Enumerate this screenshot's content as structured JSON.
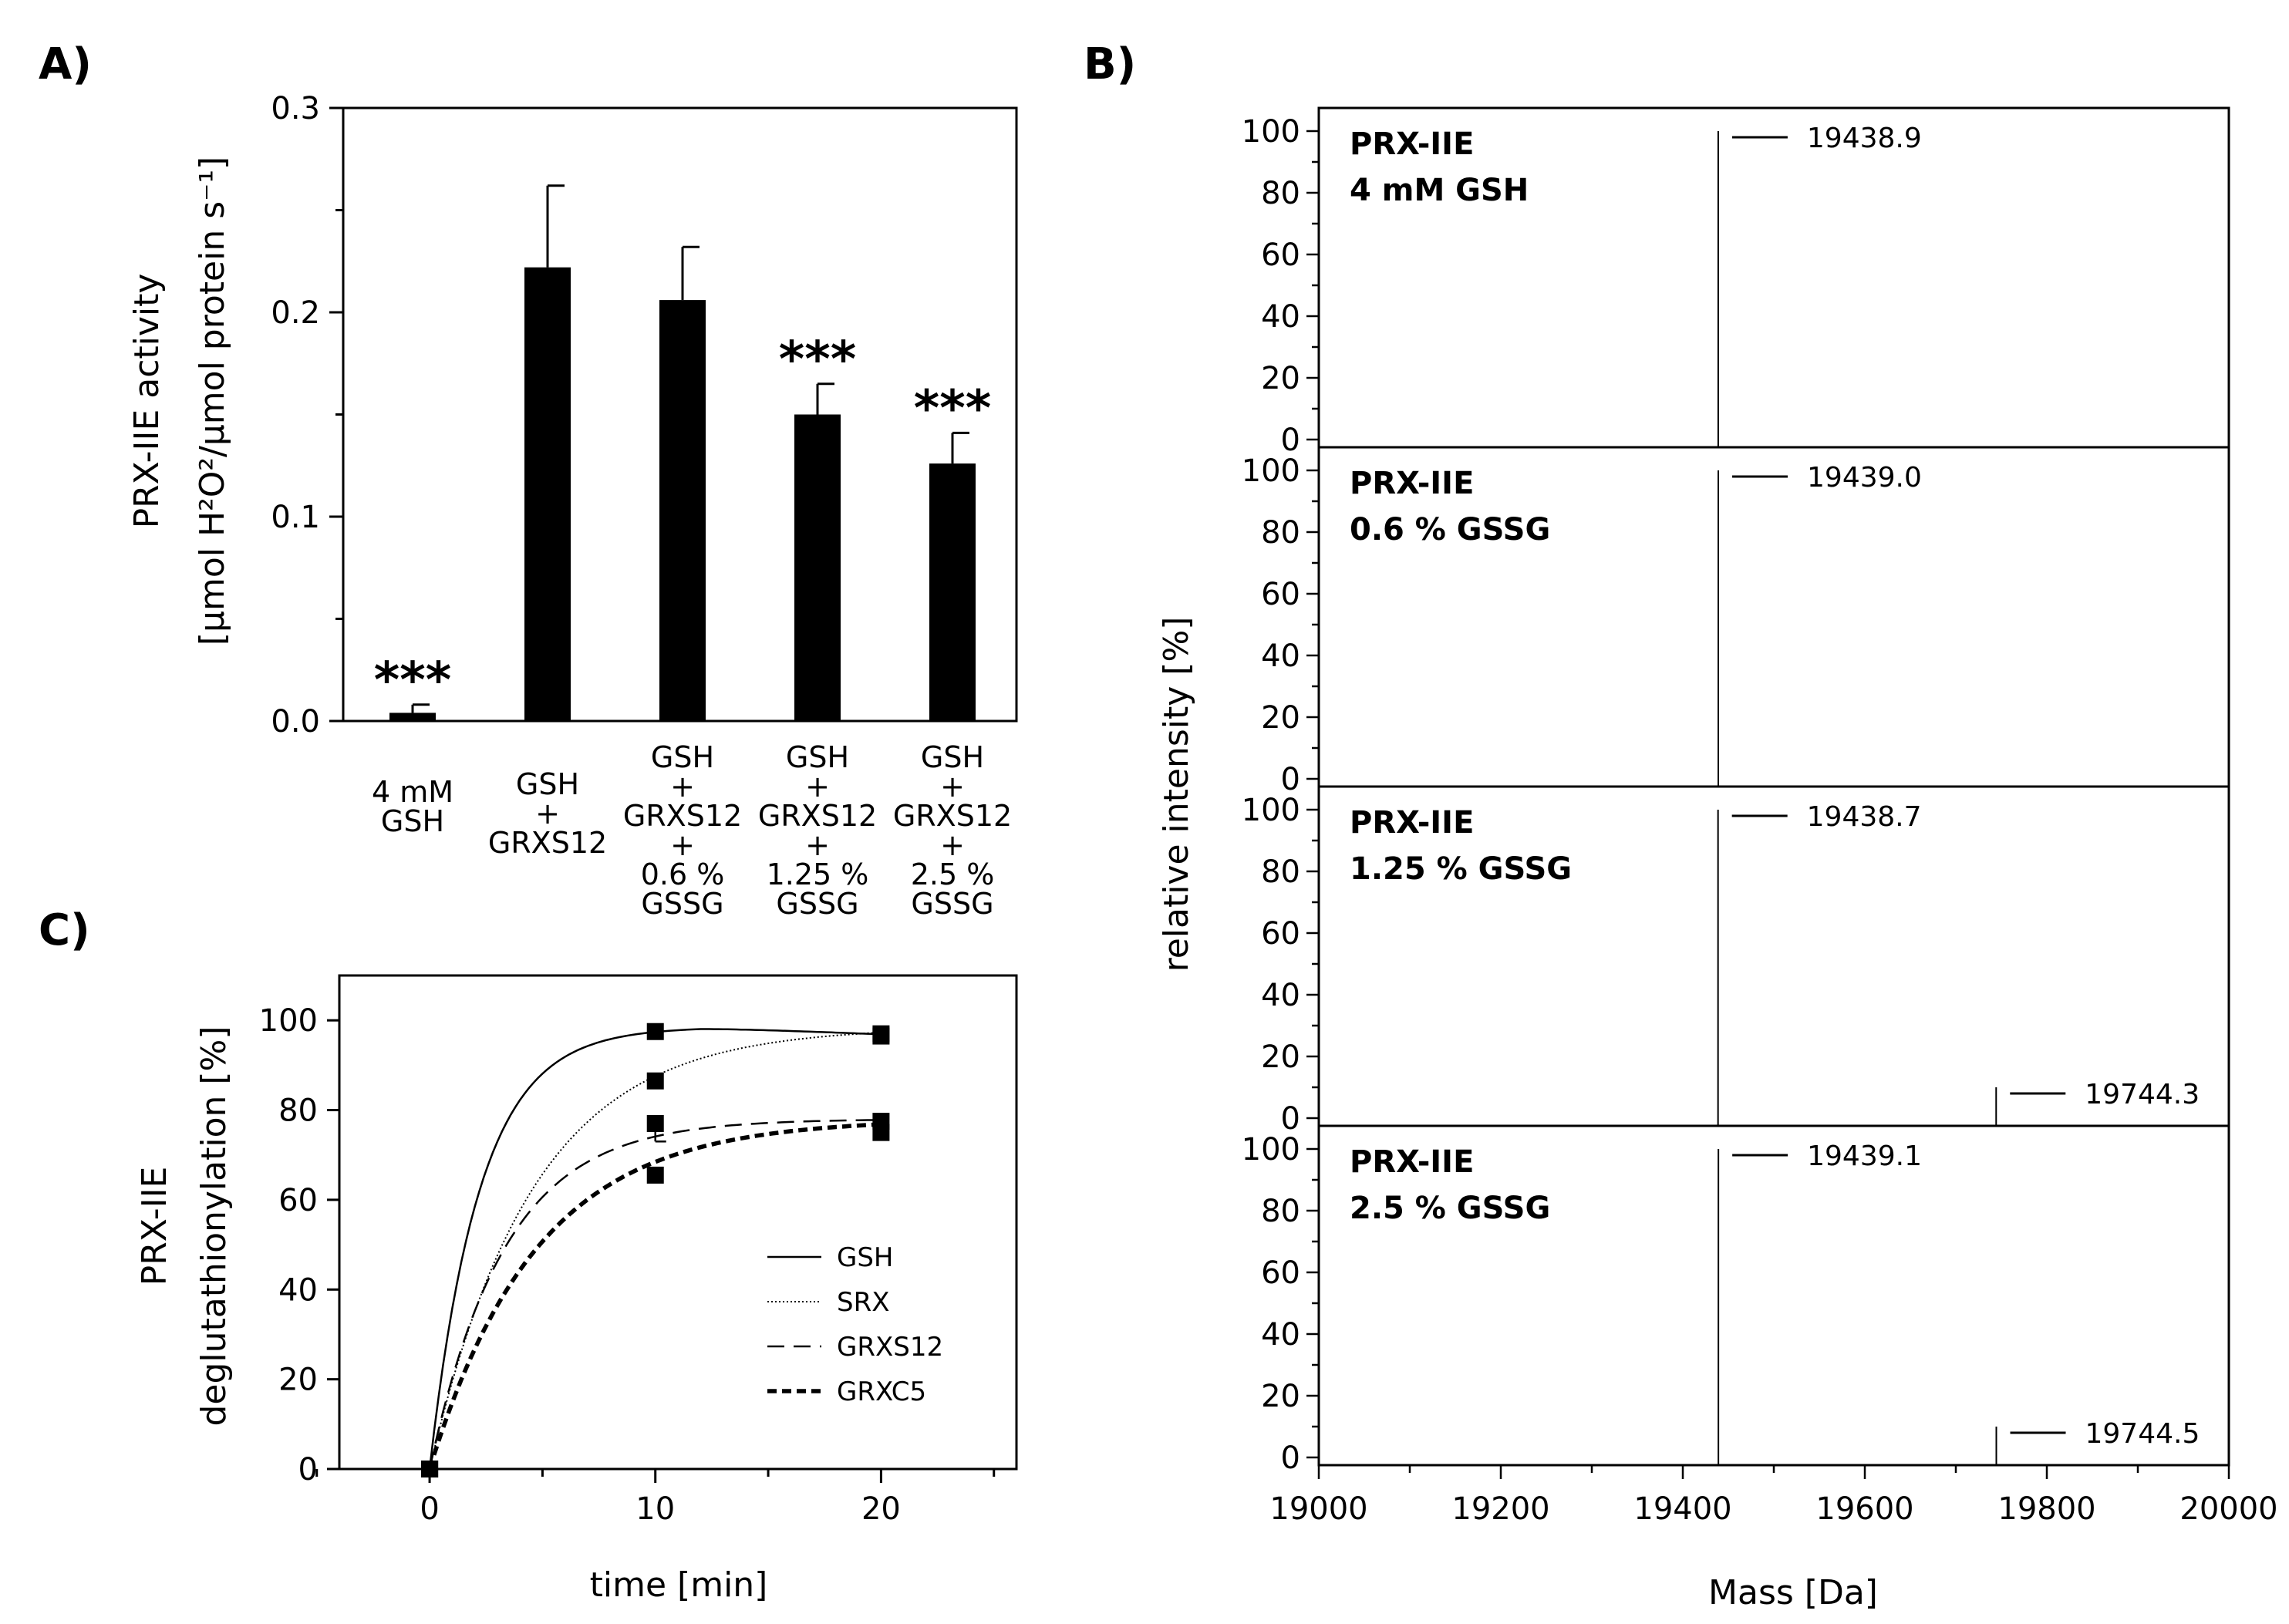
{
  "panels": {
    "a": "A)",
    "b": "B)",
    "c": "C)"
  },
  "chart_data": [
    {
      "type": "bar",
      "panel": "A)",
      "categories": [
        [
          "4 mM",
          "GSH"
        ],
        [
          "GSH",
          "+",
          "GRXS12"
        ],
        [
          "GSH",
          "+",
          "GRXS12",
          "+",
          "0.6 %",
          "GSSG"
        ],
        [
          "GSH",
          "+",
          "GRXS12",
          "+",
          "1.25 %",
          "GSSG"
        ],
        [
          "GSH",
          "+",
          "GRXS12",
          "+",
          "2.5 %",
          "GSSG"
        ]
      ],
      "values": [
        0.004,
        0.222,
        0.206,
        0.15,
        0.126
      ],
      "errors": [
        0.004,
        0.04,
        0.026,
        0.015,
        0.015
      ],
      "annotations": [
        "***",
        "",
        "",
        "***",
        "***"
      ],
      "ylabel_line1": "PRX-IIE activity",
      "ylabel_line2": "[µmol H²O²/µmol protein  s⁻¹]",
      "ylim": [
        0,
        0.3
      ],
      "yticks": [
        "0.0",
        "0.1",
        "0.2",
        "0.3"
      ],
      "bar_color": "#000000"
    },
    {
      "type": "line",
      "panel": "B)",
      "xlabel": "Mass [Da]",
      "ylabel": "relative intensity [%]",
      "xlim": [
        19000,
        20000
      ],
      "xticks": [
        "19000",
        "19200",
        "19400",
        "19600",
        "19800",
        "20000"
      ],
      "yticks": [
        "0",
        "20",
        "40",
        "60",
        "80",
        "100"
      ],
      "ylim": [
        0,
        100
      ],
      "spectra": [
        {
          "label_line1": "PRX-IIE",
          "label_line2": "4 mM GSH",
          "peaks": [
            {
              "mass": 19438.9,
              "intensity": 100,
              "label": "19438.9"
            }
          ]
        },
        {
          "label_line1": "PRX-IIE",
          "label_line2": "0.6 % GSSG",
          "peaks": [
            {
              "mass": 19439.0,
              "intensity": 100,
              "label": "19439.0"
            }
          ]
        },
        {
          "label_line1": "PRX-IIE",
          "label_line2": "1.25 % GSSG",
          "peaks": [
            {
              "mass": 19438.7,
              "intensity": 100,
              "label": "19438.7"
            },
            {
              "mass": 19744.3,
              "intensity": 10,
              "label": "19744.3"
            }
          ]
        },
        {
          "label_line1": "PRX-IIE",
          "label_line2": "2.5 % GSSG",
          "peaks": [
            {
              "mass": 19439.1,
              "intensity": 100,
              "label": "19439.1"
            },
            {
              "mass": 19744.5,
              "intensity": 10,
              "label": "19744.5"
            }
          ]
        }
      ]
    },
    {
      "type": "line",
      "panel": "C)",
      "xlabel": "time [min]",
      "ylabel_line1": "PRX-IIE",
      "ylabel_line2": "deglutathionylation [%]",
      "xlim": [
        -4,
        26
      ],
      "ylim": [
        0,
        110
      ],
      "xticks": [
        "0",
        "10",
        "20"
      ],
      "yticks": [
        "0",
        "20",
        "40",
        "60",
        "80",
        "100"
      ],
      "legend_position": "bottom-right",
      "series": [
        {
          "name": "GSH",
          "style": "solid",
          "x": [
            0,
            10,
            20
          ],
          "y": [
            0,
            97.5,
            96.5
          ],
          "rate": 0.45,
          "plateau": 98.5,
          "peak": true
        },
        {
          "name": "SRX",
          "style": "dotted",
          "x": [
            0,
            10,
            20
          ],
          "y": [
            0,
            86.5,
            97.0
          ],
          "rate": 0.22,
          "plateau": 98.5
        },
        {
          "name": "GRXS12",
          "style": "dashed",
          "x": [
            0,
            10,
            20
          ],
          "y": [
            0,
            77.0,
            77.5
          ],
          "rate": 0.3,
          "plateau": 78
        },
        {
          "name": "GRXC5",
          "style": "bold-dashed",
          "x": [
            0,
            10,
            20
          ],
          "y": [
            0,
            65.5,
            75.0
          ],
          "rate": 0.21,
          "plateau": 78
        }
      ]
    }
  ]
}
